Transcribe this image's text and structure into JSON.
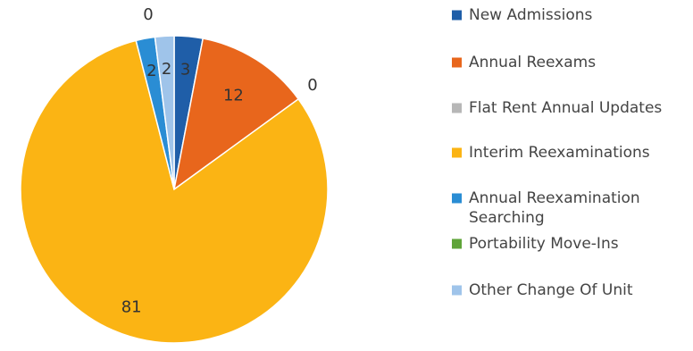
{
  "chart_data": {
    "type": "pie",
    "title": "",
    "legend_position": "right",
    "total": 100,
    "slices": [
      {
        "name": "New Admissions",
        "value": 3,
        "label": "3",
        "color": "#1f5ea8"
      },
      {
        "name": "Annual Reexams",
        "value": 12,
        "label": "12",
        "color": "#e8661c"
      },
      {
        "name": "Flat Rent Annual Updates",
        "value": 0,
        "label": "0",
        "color": "#b7b7b7"
      },
      {
        "name": "Interim Reexaminations",
        "value": 81,
        "label": "81",
        "color": "#fbb414"
      },
      {
        "name": "Annual Reexamination Searching",
        "value": 2,
        "label": "2",
        "color": "#2a8dd4"
      },
      {
        "name": "Portability Move-Ins",
        "value": 0,
        "label": "0",
        "color": "#5fa438"
      },
      {
        "name": "Other Change Of Unit",
        "value": 2,
        "label": "2",
        "color": "#9fc4ea"
      }
    ]
  }
}
